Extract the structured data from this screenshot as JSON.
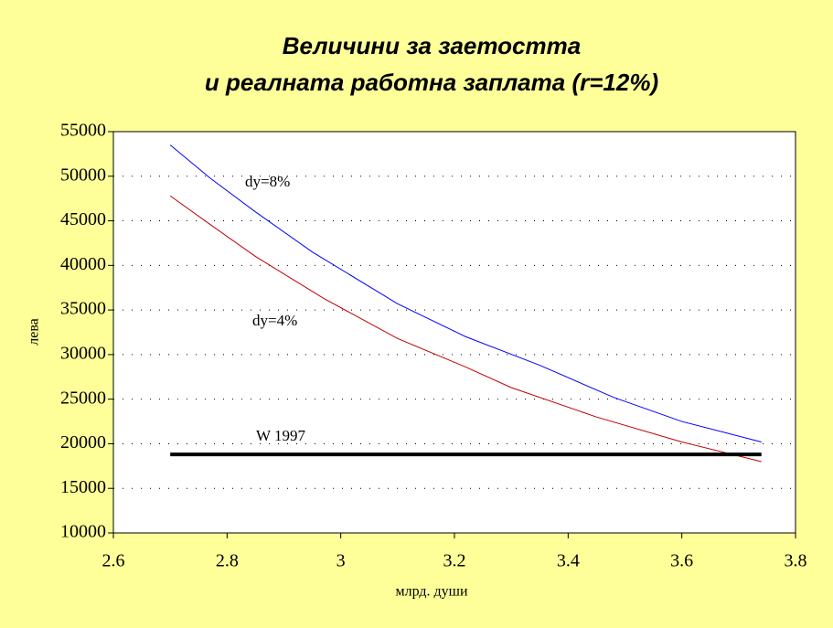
{
  "chart_data": {
    "type": "line",
    "title": [
      "Величини за заетостта",
      "и реалната работна заплата (r=12%)"
    ],
    "x_label": "млрд. души",
    "y_label": "лева",
    "xlim": [
      2.6,
      3.8
    ],
    "xticks": [
      2.6,
      2.8,
      3,
      3.2,
      3.4,
      3.6,
      3.8
    ],
    "ylim": [
      10000,
      55000
    ],
    "yticks": [
      10000,
      15000,
      20000,
      25000,
      30000,
      35000,
      40000,
      45000,
      50000,
      55000
    ],
    "grid": true,
    "series": [
      {
        "name": "dy=8%",
        "color": "#0000ff",
        "linewidth": 1,
        "x": [
          2.7,
          2.77,
          2.85,
          2.95,
          3.1,
          3.22,
          3.35,
          3.48,
          3.6,
          3.74
        ],
        "values": [
          53500,
          49800,
          46000,
          41500,
          35700,
          32000,
          28800,
          25200,
          22500,
          20200
        ]
      },
      {
        "name": "dy=4%",
        "color": "#c00000",
        "linewidth": 1,
        "x": [
          2.7,
          2.77,
          2.85,
          2.97,
          3.1,
          3.22,
          3.3,
          3.45,
          3.6,
          3.74
        ],
        "values": [
          47800,
          44600,
          41000,
          36300,
          31800,
          28600,
          26300,
          23000,
          20200,
          18000
        ]
      },
      {
        "name": "W 1997",
        "color": "#000000",
        "linewidth": 4,
        "x": [
          2.7,
          3.74
        ],
        "values": [
          18800,
          18800
        ]
      }
    ]
  }
}
